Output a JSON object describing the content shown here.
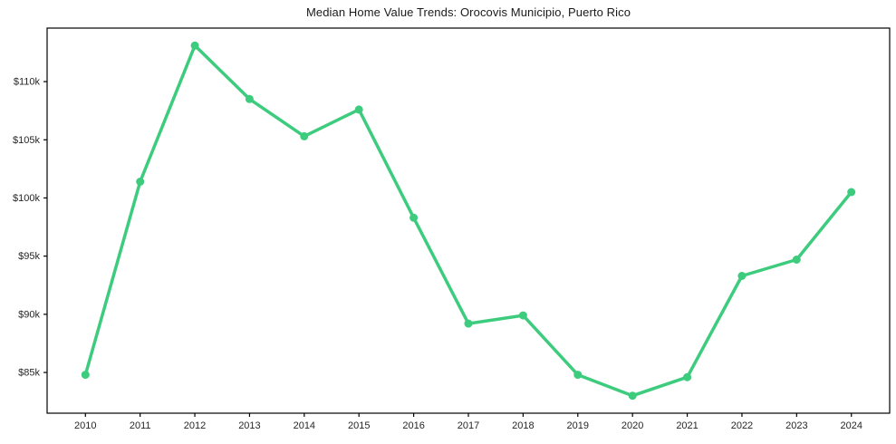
{
  "chart_data": {
    "type": "line",
    "title": "Median Home Value Trends: Orocovis Municipio, Puerto Rico",
    "xlabel": "",
    "ylabel": "",
    "legend": "none",
    "grid": false,
    "marker": "circle",
    "x": [
      2010,
      2011,
      2012,
      2013,
      2014,
      2015,
      2016,
      2017,
      2018,
      2019,
      2020,
      2021,
      2022,
      2023,
      2024
    ],
    "x_tick_labels": [
      "2010",
      "2011",
      "2012",
      "2013",
      "2014",
      "2015",
      "2016",
      "2017",
      "2018",
      "2019",
      "2020",
      "2021",
      "2022",
      "2023",
      "2024"
    ],
    "series": [
      {
        "name": "Median Home Value",
        "values": [
          84800,
          101400,
          113100,
          108500,
          105300,
          107600,
          98300,
          89200,
          89900,
          84800,
          83000,
          84600,
          93300,
          94700,
          100500
        ]
      }
    ],
    "yticks": [
      {
        "value": 85000,
        "label": "$85k"
      },
      {
        "value": 90000,
        "label": "$90k"
      },
      {
        "value": 95000,
        "label": "$95k"
      },
      {
        "value": 100000,
        "label": "$100k"
      },
      {
        "value": 105000,
        "label": "$105k"
      },
      {
        "value": 110000,
        "label": "$110k"
      }
    ],
    "xlim": [
      2009.3,
      2024.7
    ],
    "ylim": [
      81500,
      114600
    ],
    "colors": {
      "line": "#3dcc7e",
      "marker": "#3dcc7e",
      "axis": "#000000",
      "tick_label": "#262626",
      "title": "#1a1a1a",
      "background": "#ffffff"
    }
  }
}
